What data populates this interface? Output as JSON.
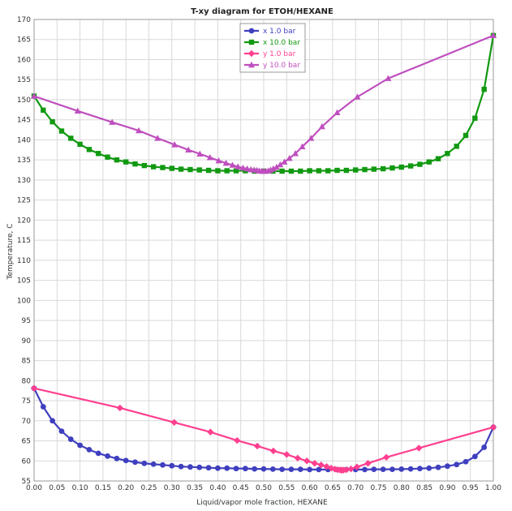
{
  "chart_data": {
    "type": "line",
    "title": "T-xy diagram for ETOH/HEXANE",
    "xlabel": "Liquid/vapor mole fraction, HEXANE",
    "ylabel": "Temperature, C",
    "xlim": [
      0,
      1
    ],
    "ylim": [
      55,
      170
    ],
    "xticks": [
      "0.00",
      "0.05",
      "0.10",
      "0.15",
      "0.20",
      "0.25",
      "0.30",
      "0.35",
      "0.40",
      "0.45",
      "0.50",
      "0.55",
      "0.60",
      "0.65",
      "0.70",
      "0.75",
      "0.80",
      "0.85",
      "0.90",
      "0.95",
      "1.00"
    ],
    "yticks": [
      "55",
      "60",
      "65",
      "70",
      "75",
      "80",
      "85",
      "90",
      "95",
      "100",
      "105",
      "110",
      "115",
      "120",
      "125",
      "130",
      "135",
      "140",
      "145",
      "150",
      "155",
      "160",
      "165",
      "170"
    ],
    "legend_position": "top-center",
    "series": [
      {
        "name": "x 1.0 bar",
        "color": "#3f3fbf",
        "marker": "circle",
        "x": [
          0.0,
          0.02,
          0.04,
          0.06,
          0.08,
          0.1,
          0.12,
          0.14,
          0.16,
          0.18,
          0.2,
          0.22,
          0.24,
          0.26,
          0.28,
          0.3,
          0.32,
          0.34,
          0.36,
          0.38,
          0.4,
          0.42,
          0.44,
          0.46,
          0.48,
          0.5,
          0.52,
          0.54,
          0.56,
          0.58,
          0.6,
          0.62,
          0.64,
          0.66,
          0.68,
          0.7,
          0.72,
          0.74,
          0.76,
          0.78,
          0.8,
          0.82,
          0.84,
          0.86,
          0.88,
          0.9,
          0.92,
          0.94,
          0.96,
          0.98,
          1.0
        ],
        "y": [
          78.1,
          73.5,
          70.0,
          67.4,
          65.4,
          63.9,
          62.8,
          61.9,
          61.2,
          60.6,
          60.1,
          59.7,
          59.4,
          59.2,
          59.0,
          58.8,
          58.6,
          58.5,
          58.4,
          58.3,
          58.2,
          58.2,
          58.1,
          58.1,
          58.0,
          58.0,
          57.95,
          57.9,
          57.9,
          57.9,
          57.85,
          57.85,
          57.85,
          57.85,
          57.85,
          57.85,
          57.85,
          57.9,
          57.9,
          57.9,
          57.95,
          58.0,
          58.1,
          58.2,
          58.4,
          58.7,
          59.1,
          59.8,
          61.1,
          63.4,
          68.4
        ]
      },
      {
        "name": "x 10.0 bar",
        "color": "#119911",
        "marker": "square",
        "x": [
          0.0,
          0.02,
          0.04,
          0.06,
          0.08,
          0.1,
          0.12,
          0.14,
          0.16,
          0.18,
          0.2,
          0.22,
          0.24,
          0.26,
          0.28,
          0.3,
          0.32,
          0.34,
          0.36,
          0.38,
          0.4,
          0.42,
          0.44,
          0.46,
          0.48,
          0.5,
          0.52,
          0.54,
          0.56,
          0.58,
          0.6,
          0.62,
          0.64,
          0.66,
          0.68,
          0.7,
          0.72,
          0.74,
          0.76,
          0.78,
          0.8,
          0.82,
          0.84,
          0.86,
          0.88,
          0.9,
          0.92,
          0.94,
          0.96,
          0.98,
          1.0
        ],
        "y": [
          150.9,
          147.4,
          144.5,
          142.2,
          140.4,
          138.9,
          137.6,
          136.6,
          135.7,
          135.0,
          134.5,
          134.0,
          133.6,
          133.3,
          133.1,
          132.9,
          132.7,
          132.6,
          132.5,
          132.4,
          132.3,
          132.3,
          132.3,
          132.3,
          132.2,
          132.2,
          132.2,
          132.2,
          132.2,
          132.2,
          132.3,
          132.3,
          132.3,
          132.4,
          132.4,
          132.5,
          132.6,
          132.7,
          132.8,
          133.0,
          133.2,
          133.5,
          133.9,
          134.5,
          135.3,
          136.6,
          138.4,
          141.1,
          145.4,
          152.6,
          166.0
        ]
      },
      {
        "name": "y 1.0 bar",
        "color": "#ff3f8f",
        "marker": "diamond",
        "x": [
          0.0,
          0.187,
          0.305,
          0.384,
          0.442,
          0.486,
          0.521,
          0.55,
          0.574,
          0.594,
          0.611,
          0.625,
          0.637,
          0.647,
          0.655,
          0.661,
          0.666,
          0.669,
          0.671,
          0.674,
          0.68,
          0.69,
          0.703,
          0.727,
          0.767,
          0.838,
          1.0
        ],
        "y": [
          78.1,
          73.2,
          69.6,
          67.2,
          65.1,
          63.7,
          62.5,
          61.6,
          60.7,
          60.0,
          59.4,
          59.0,
          58.6,
          58.2,
          57.95,
          57.8,
          57.75,
          57.72,
          57.7,
          57.72,
          57.8,
          58.0,
          58.5,
          59.4,
          60.9,
          63.2,
          68.4
        ]
      },
      {
        "name": "y 10.0 bar",
        "color": "#bf4fbf",
        "marker": "triangle",
        "x": [
          0.0,
          0.095,
          0.17,
          0.228,
          0.269,
          0.306,
          0.336,
          0.361,
          0.383,
          0.402,
          0.418,
          0.432,
          0.444,
          0.455,
          0.464,
          0.472,
          0.479,
          0.485,
          0.49,
          0.495,
          0.5,
          0.505,
          0.51,
          0.515,
          0.521,
          0.528,
          0.536,
          0.545,
          0.556,
          0.569,
          0.584,
          0.603,
          0.627,
          0.66,
          0.704,
          0.771,
          1.0
        ],
        "y": [
          150.9,
          147.2,
          144.4,
          142.3,
          140.4,
          138.8,
          137.5,
          136.5,
          135.6,
          134.8,
          134.2,
          133.7,
          133.3,
          133.0,
          132.8,
          132.6,
          132.5,
          132.4,
          132.3,
          132.2,
          132.2,
          132.2,
          132.3,
          132.5,
          132.8,
          133.2,
          133.8,
          134.5,
          135.4,
          136.6,
          138.3,
          140.4,
          143.3,
          146.8,
          150.7,
          155.3,
          166.0
        ]
      }
    ]
  }
}
